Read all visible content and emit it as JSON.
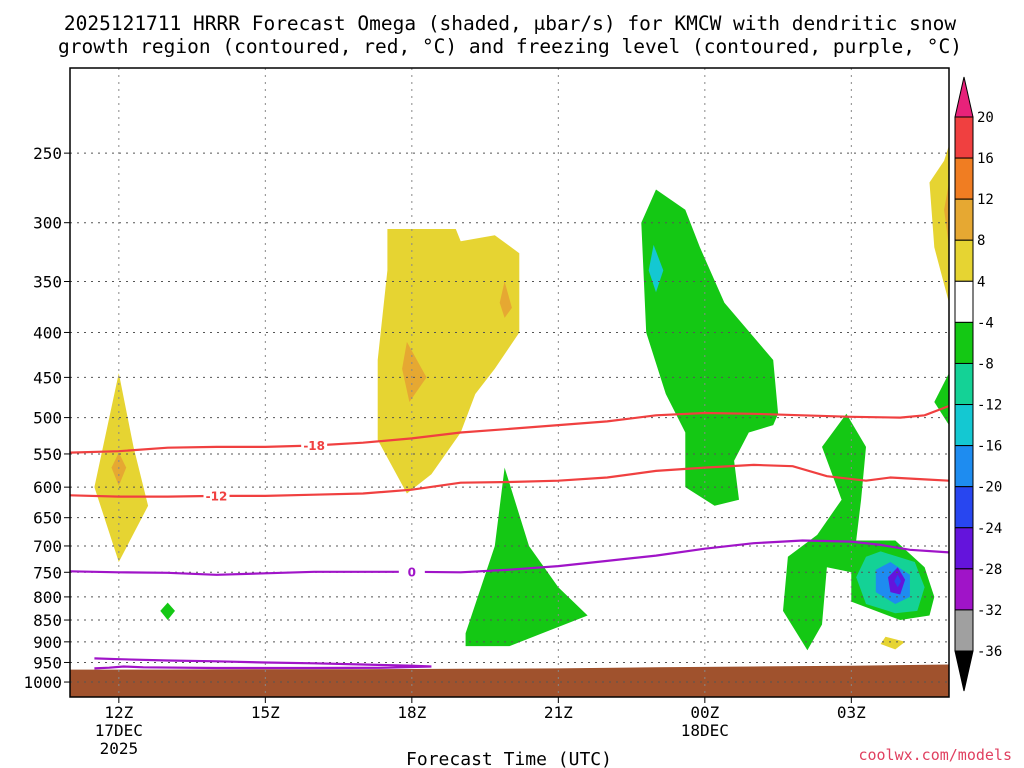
{
  "chart_data": {
    "type": "heatmap",
    "title_line1": "2025121711 HRRR Forecast Omega (shaded, μbar/s) for KMCW with dendritic snow",
    "title_line2": "growth region (contoured, red, °C) and freezing level (contoured, purple, °C)",
    "xlabel": "Forecast Time (UTC)",
    "credit": "coolwx.com/models",
    "x_ticks": [
      {
        "hour": 12,
        "label": "12Z",
        "sub1": "17DEC",
        "sub2": "2025"
      },
      {
        "hour": 15,
        "label": "15Z",
        "sub1": "",
        "sub2": ""
      },
      {
        "hour": 18,
        "label": "18Z",
        "sub1": "",
        "sub2": ""
      },
      {
        "hour": 21,
        "label": "21Z",
        "sub1": "",
        "sub2": ""
      },
      {
        "hour": 24,
        "label": "00Z",
        "sub1": "18DEC",
        "sub2": ""
      },
      {
        "hour": 27,
        "label": "03Z",
        "sub1": "",
        "sub2": ""
      }
    ],
    "xlim_hours": [
      11,
      29
    ],
    "y_ticks": [
      250,
      300,
      350,
      400,
      450,
      500,
      550,
      600,
      650,
      700,
      750,
      800,
      850,
      900,
      950,
      1000
    ],
    "ylim_hpa": [
      200,
      1040
    ],
    "y_scale": "log-pressure",
    "grid": true,
    "colorbar": {
      "levels": [
        20,
        16,
        12,
        8,
        4,
        -4,
        -8,
        -12,
        -16,
        -20,
        -24,
        -28,
        -32,
        -36
      ],
      "colors": [
        "#e8227a",
        "#f04040",
        "#f07d22",
        "#e6a832",
        "#e6d432",
        "#ffffff",
        "#14c814",
        "#14d296",
        "#14c8d2",
        "#1e8cf0",
        "#2846f0",
        "#6414dc",
        "#a014c8",
        "#a0a0a0",
        "#000000"
      ],
      "position": "right"
    },
    "shading": [
      {
        "value": 4,
        "color": "#e6d432",
        "points": [
          [
            12,
            445
          ],
          [
            12.3,
            540
          ],
          [
            12.6,
            630
          ],
          [
            12,
            730
          ],
          [
            11.5,
            600
          ]
        ]
      },
      {
        "value": 8,
        "color": "#e6a832",
        "points": [
          [
            12,
            548
          ],
          [
            12.15,
            570
          ],
          [
            12,
            598
          ],
          [
            11.85,
            570
          ]
        ]
      },
      {
        "value": -4,
        "color": "#14c814",
        "points": [
          [
            13,
            812
          ],
          [
            13.15,
            830
          ],
          [
            13,
            850
          ],
          [
            12.85,
            830
          ]
        ]
      },
      {
        "value": 4,
        "color": "#e6d432",
        "points": [
          [
            17.5,
            305
          ],
          [
            18.9,
            305
          ],
          [
            19,
            315
          ],
          [
            19.7,
            310
          ],
          [
            20.2,
            325
          ],
          [
            20.2,
            400
          ],
          [
            19.7,
            440
          ],
          [
            19.3,
            470
          ],
          [
            19,
            520
          ],
          [
            18.4,
            580
          ],
          [
            17.9,
            610
          ],
          [
            17.3,
            530
          ],
          [
            17.3,
            430
          ],
          [
            17.5,
            340
          ]
        ]
      },
      {
        "value": 8,
        "color": "#e6a832",
        "points": [
          [
            17.9,
            410
          ],
          [
            18.3,
            450
          ],
          [
            17.95,
            480
          ],
          [
            17.8,
            440
          ]
        ]
      },
      {
        "value": 8,
        "color": "#e6a832",
        "points": [
          [
            19.9,
            350
          ],
          [
            20.05,
            375
          ],
          [
            19.9,
            385
          ],
          [
            19.8,
            370
          ]
        ]
      },
      {
        "value": -4,
        "color": "#14c814",
        "points": [
          [
            19.9,
            570
          ],
          [
            20.4,
            700
          ],
          [
            21,
            780
          ],
          [
            21.6,
            840
          ],
          [
            20,
            910
          ],
          [
            19.1,
            910
          ],
          [
            19.1,
            880
          ],
          [
            19.7,
            700
          ]
        ]
      },
      {
        "value": -4,
        "color": "#14c814",
        "points": [
          [
            23,
            275
          ],
          [
            23.6,
            290
          ],
          [
            23.9,
            320
          ],
          [
            24.4,
            370
          ],
          [
            25.4,
            430
          ],
          [
            25.5,
            495
          ],
          [
            25.4,
            510
          ],
          [
            24.9,
            520
          ],
          [
            24.6,
            560
          ],
          [
            24.7,
            620
          ],
          [
            24.2,
            630
          ],
          [
            23.6,
            600
          ],
          [
            23.6,
            520
          ],
          [
            23.2,
            470
          ],
          [
            22.8,
            400
          ],
          [
            22.7,
            300
          ]
        ]
      },
      {
        "value": -12,
        "color": "#14c8d2",
        "points": [
          [
            22.95,
            318
          ],
          [
            23.15,
            340
          ],
          [
            23.0,
            360
          ],
          [
            22.85,
            340
          ]
        ]
      },
      {
        "value": -4,
        "color": "#14c814",
        "points": [
          [
            26.9,
            495
          ],
          [
            27.3,
            540
          ],
          [
            27.2,
            620
          ],
          [
            27.1,
            690
          ],
          [
            27.9,
            690
          ],
          [
            28.5,
            740
          ],
          [
            28.7,
            800
          ],
          [
            28.6,
            840
          ],
          [
            28.0,
            850
          ],
          [
            27.5,
            830
          ],
          [
            27.0,
            810
          ],
          [
            27.0,
            750
          ],
          [
            26.5,
            740
          ],
          [
            26.4,
            860
          ],
          [
            26.1,
            920
          ],
          [
            25.6,
            830
          ],
          [
            25.7,
            720
          ],
          [
            26.3,
            680
          ],
          [
            26.8,
            620
          ],
          [
            26.4,
            540
          ]
        ]
      },
      {
        "value": -8,
        "color": "#14d296",
        "points": [
          [
            27.6,
            710
          ],
          [
            28.3,
            730
          ],
          [
            28.5,
            780
          ],
          [
            28.35,
            830
          ],
          [
            27.9,
            835
          ],
          [
            27.3,
            815
          ],
          [
            27.1,
            760
          ],
          [
            27.3,
            720
          ]
        ]
      },
      {
        "value": -16,
        "color": "#1e8cf0",
        "points": [
          [
            27.8,
            730
          ],
          [
            28.2,
            755
          ],
          [
            28.2,
            800
          ],
          [
            27.9,
            815
          ],
          [
            27.5,
            790
          ],
          [
            27.5,
            745
          ]
        ]
      },
      {
        "value": -24,
        "color": "#6414dc",
        "points": [
          [
            27.95,
            740
          ],
          [
            28.1,
            765
          ],
          [
            28.0,
            795
          ],
          [
            27.8,
            790
          ],
          [
            27.75,
            760
          ]
        ]
      },
      {
        "value": -28,
        "color": "#2846f0",
        "points": [
          [
            27.95,
            755
          ],
          [
            28.02,
            768
          ],
          [
            27.95,
            780
          ],
          [
            27.88,
            768
          ]
        ]
      },
      {
        "value": 4,
        "color": "#e6d432",
        "points": [
          [
            27.7,
            888
          ],
          [
            28.1,
            900
          ],
          [
            27.9,
            918
          ],
          [
            27.6,
            905
          ]
        ]
      },
      {
        "value": 4,
        "color": "#e6d432",
        "points": [
          [
            28.9,
            255
          ],
          [
            29,
            245
          ],
          [
            29,
            370
          ],
          [
            28.7,
            320
          ],
          [
            28.6,
            270
          ]
        ]
      },
      {
        "value": 8,
        "color": "#e6a832",
        "points": [
          [
            29,
            270
          ],
          [
            28.9,
            290
          ],
          [
            29,
            320
          ]
        ]
      },
      {
        "value": -4,
        "color": "#14c814",
        "points": [
          [
            29,
            445
          ],
          [
            28.7,
            480
          ],
          [
            29,
            510
          ]
        ]
      }
    ],
    "contours": [
      {
        "label": "-18",
        "color": "#f04040",
        "points": [
          [
            11,
            548
          ],
          [
            12,
            546
          ],
          [
            13,
            541
          ],
          [
            14,
            540
          ],
          [
            15,
            540
          ],
          [
            16,
            538
          ],
          [
            17,
            534
          ],
          [
            18,
            528
          ],
          [
            19,
            520
          ],
          [
            20,
            515
          ],
          [
            21,
            510
          ],
          [
            22,
            505
          ],
          [
            23,
            497
          ],
          [
            24,
            494
          ],
          [
            25,
            495
          ],
          [
            26,
            497
          ],
          [
            27,
            499
          ],
          [
            28,
            500
          ],
          [
            28.5,
            497
          ],
          [
            29,
            485
          ]
        ],
        "label_at": 16
      },
      {
        "label": "-12",
        "color": "#f04040",
        "points": [
          [
            11,
            613
          ],
          [
            12,
            615
          ],
          [
            13,
            615
          ],
          [
            14,
            614
          ],
          [
            15,
            614
          ],
          [
            16,
            612
          ],
          [
            17,
            610
          ],
          [
            18,
            604
          ],
          [
            19,
            593
          ],
          [
            20,
            592
          ],
          [
            21,
            590
          ],
          [
            22,
            585
          ],
          [
            23,
            575
          ],
          [
            24,
            570
          ],
          [
            25,
            566
          ],
          [
            25.8,
            568
          ],
          [
            26.5,
            583
          ],
          [
            27.3,
            590
          ],
          [
            27.8,
            585
          ],
          [
            28.5,
            588
          ],
          [
            29,
            590
          ]
        ],
        "label_at": 14
      },
      {
        "label": "0",
        "color": "#a014c8",
        "points": [
          [
            11,
            748
          ],
          [
            12,
            750
          ],
          [
            13,
            751
          ],
          [
            14,
            755
          ],
          [
            15,
            752
          ],
          [
            16,
            749
          ],
          [
            17,
            749
          ],
          [
            18,
            749
          ],
          [
            19,
            750
          ],
          [
            20,
            745
          ],
          [
            21,
            738
          ],
          [
            22,
            728
          ],
          [
            23,
            718
          ],
          [
            24,
            705
          ],
          [
            25,
            695
          ],
          [
            26,
            690
          ],
          [
            27,
            692
          ],
          [
            27.6,
            698
          ],
          [
            28.2,
            707
          ],
          [
            29,
            712
          ]
        ],
        "label_at": 18
      },
      {
        "label": "",
        "color": "#a014c8",
        "points": [
          [
            11.5,
            940
          ],
          [
            12,
            942
          ],
          [
            13,
            945
          ],
          [
            14,
            947
          ],
          [
            15,
            950
          ],
          [
            16,
            952
          ],
          [
            17,
            955
          ],
          [
            18,
            958
          ],
          [
            18.4,
            960
          ],
          [
            17.5,
            963
          ],
          [
            16,
            964
          ],
          [
            14,
            964
          ],
          [
            12.5,
            962
          ],
          [
            12.1,
            960
          ],
          [
            11.8,
            963
          ],
          [
            11.5,
            965
          ]
        ],
        "label_at": null
      }
    ],
    "terrain": {
      "color": "#a0522d",
      "points": [
        [
          11,
          968
        ],
        [
          13,
          968
        ],
        [
          15,
          967
        ],
        [
          17,
          967
        ],
        [
          19,
          966
        ],
        [
          21,
          965
        ],
        [
          23,
          962
        ],
        [
          25,
          960
        ],
        [
          27,
          958
        ],
        [
          29,
          955
        ]
      ]
    }
  }
}
